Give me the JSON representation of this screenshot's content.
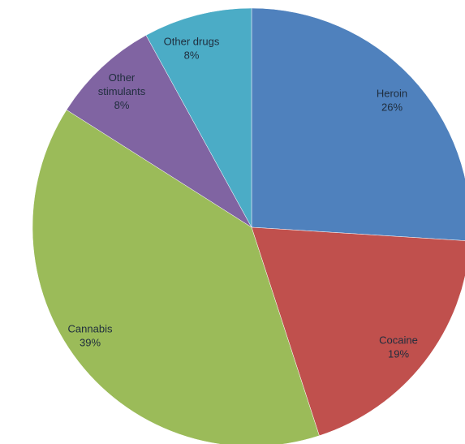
{
  "chart_data": {
    "type": "pie",
    "title": "",
    "slices": [
      {
        "label": "Heroin",
        "value": 26,
        "value_label": "26%",
        "color": "#4f81bd"
      },
      {
        "label": "Cocaine",
        "value": 19,
        "value_label": "19%",
        "color": "#c0504d"
      },
      {
        "label": "Cannabis",
        "value": 39,
        "value_label": "39%",
        "color": "#9bbb59"
      },
      {
        "label": "Other stimulants",
        "value": 8,
        "value_label": "8%",
        "color": "#8064a2"
      },
      {
        "label": "Other drugs",
        "value": 8,
        "value_label": "8%",
        "color": "#4bacc6"
      }
    ],
    "start_position": "12 o'clock",
    "direction": "clockwise",
    "legend": "none",
    "data_labels": "inside"
  }
}
